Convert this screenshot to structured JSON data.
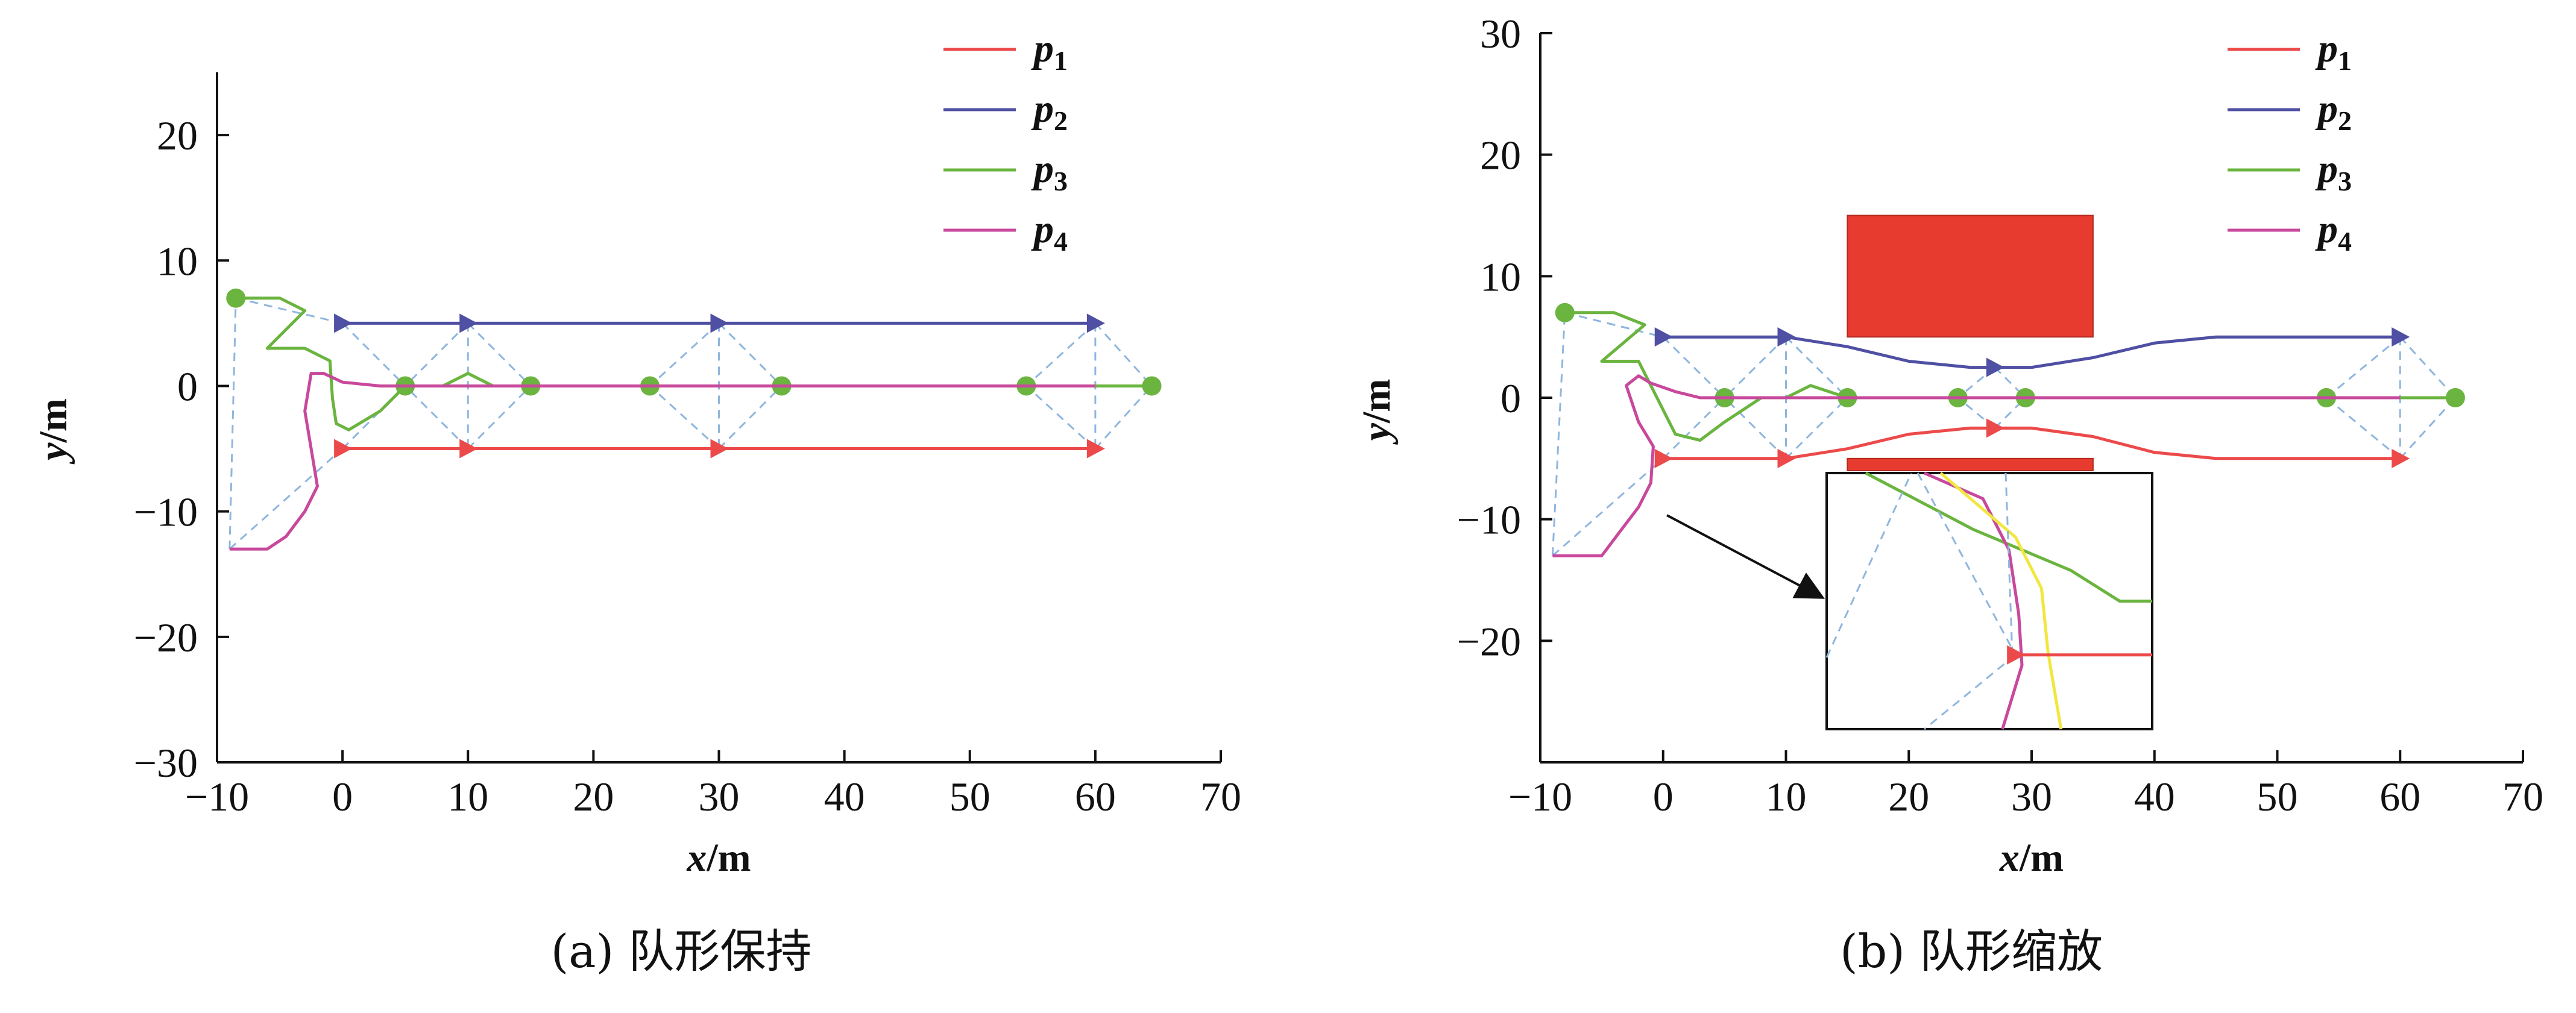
{
  "chart_data": [
    {
      "id": "a",
      "type": "line",
      "caption": "(a) 队形保持",
      "xlabel_var": "x",
      "xlabel_unit": "/m",
      "ylabel_var": "y",
      "ylabel_unit": "/m",
      "xlim": [
        -10,
        70
      ],
      "ylim": [
        -30,
        25
      ],
      "xticks": [
        -10,
        0,
        10,
        20,
        30,
        40,
        50,
        60,
        70
      ],
      "yticks": [
        -30,
        -20,
        -10,
        0,
        10,
        20
      ],
      "legend_position": "top-right",
      "series": [
        {
          "name": "p",
          "sub": "1",
          "color": "#ec4a4a",
          "x": [
            0,
            10,
            20,
            30,
            40,
            50,
            60
          ],
          "y": [
            -5,
            -5,
            -5,
            -5,
            -5,
            -5,
            -5
          ],
          "markers": [
            [
              0,
              -5
            ],
            [
              10,
              -5
            ],
            [
              30,
              -5
            ],
            [
              60,
              -5
            ]
          ]
        },
        {
          "name": "p",
          "sub": "2",
          "color": "#4f4fa3",
          "x": [
            0,
            10,
            20,
            30,
            40,
            50,
            60
          ],
          "y": [
            5,
            5,
            5,
            5,
            5,
            5,
            5
          ],
          "markers": [
            [
              0,
              5
            ],
            [
              10,
              5
            ],
            [
              30,
              5
            ],
            [
              60,
              5
            ]
          ]
        },
        {
          "name": "p",
          "sub": "3",
          "color": "#6ab43f",
          "x": [
            -8.5,
            -5,
            -3,
            -6,
            -3,
            -1,
            -0.8,
            -0.5,
            0.5,
            3,
            5,
            8,
            10,
            12,
            15,
            20,
            25,
            30,
            35,
            40,
            45,
            50,
            55,
            60,
            65
          ],
          "y": [
            7,
            7,
            6,
            3,
            3,
            2,
            -1,
            -3,
            -3.5,
            -2,
            0,
            0,
            1,
            0,
            0,
            0,
            0,
            0,
            0,
            0,
            0,
            0,
            0,
            0,
            0
          ],
          "markers": [
            [
              -8.5,
              7
            ],
            [
              5,
              0
            ],
            [
              15,
              0
            ],
            [
              24.5,
              0
            ],
            [
              35,
              0
            ],
            [
              54.5,
              0
            ],
            [
              64.5,
              0
            ]
          ]
        },
        {
          "name": "p",
          "sub": "4",
          "color": "#c8489c",
          "x": [
            -9,
            -6,
            -4.5,
            -3,
            -2,
            -2.5,
            -3,
            -2.5,
            -1.5,
            0,
            3,
            6,
            10,
            15,
            20,
            30,
            40,
            50,
            60
          ],
          "y": [
            -13,
            -13,
            -12,
            -10,
            -8,
            -5,
            -2,
            1,
            1,
            0.3,
            0,
            0,
            0,
            0,
            0,
            0,
            0,
            0,
            0
          ],
          "markers": []
        }
      ],
      "formation_links": [
        [
          [
            -9,
            -13
          ],
          [
            0,
            -5
          ]
        ],
        [
          [
            -9,
            -13
          ],
          [
            -8.5,
            7
          ]
        ],
        [
          [
            -8.5,
            7
          ],
          [
            0,
            5
          ]
        ],
        [
          [
            0,
            5
          ],
          [
            5,
            0
          ]
        ],
        [
          [
            0,
            -5
          ],
          [
            5,
            0
          ]
        ],
        [
          [
            10,
            5
          ],
          [
            5,
            0
          ]
        ],
        [
          [
            10,
            -5
          ],
          [
            5,
            0
          ]
        ],
        [
          [
            10,
            5
          ],
          [
            15,
            0
          ]
        ],
        [
          [
            10,
            -5
          ],
          [
            15,
            0
          ]
        ],
        [
          [
            10,
            5
          ],
          [
            10,
            -5
          ]
        ],
        [
          [
            30,
            5
          ],
          [
            24.5,
            0
          ]
        ],
        [
          [
            30,
            -5
          ],
          [
            24.5,
            0
          ]
        ],
        [
          [
            30,
            5
          ],
          [
            35,
            0
          ]
        ],
        [
          [
            30,
            -5
          ],
          [
            35,
            0
          ]
        ],
        [
          [
            30,
            5
          ],
          [
            30,
            -5
          ]
        ],
        [
          [
            60,
            5
          ],
          [
            54.5,
            0
          ]
        ],
        [
          [
            60,
            -5
          ],
          [
            54.5,
            0
          ]
        ],
        [
          [
            60,
            5
          ],
          [
            64.5,
            0
          ]
        ],
        [
          [
            60,
            -5
          ],
          [
            64.5,
            0
          ]
        ],
        [
          [
            60,
            5
          ],
          [
            60,
            -5
          ]
        ]
      ]
    },
    {
      "id": "b",
      "type": "line",
      "caption": "(b) 队形缩放",
      "xlabel_var": "x",
      "xlabel_unit": "/m",
      "ylabel_var": "y",
      "ylabel_unit": "/m",
      "xlim": [
        -10,
        70
      ],
      "ylim": [
        -30,
        30
      ],
      "xticks": [
        -10,
        0,
        10,
        20,
        30,
        40,
        50,
        60,
        70
      ],
      "yticks": [
        -20,
        -10,
        0,
        10,
        20,
        30
      ],
      "legend_position": "top-right",
      "obstacles": [
        {
          "x": [
            15,
            35
          ],
          "y": [
            5,
            15
          ],
          "color": "#e63b2e"
        },
        {
          "x": [
            15,
            35
          ],
          "y": [
            -6,
            -5
          ],
          "color": "#e63b2e"
        }
      ],
      "series": [
        {
          "name": "p",
          "sub": "1",
          "color": "#ec4a4a",
          "x": [
            0,
            10,
            15,
            20,
            25,
            30,
            35,
            40,
            45,
            50,
            55,
            60
          ],
          "y": [
            -5,
            -5,
            -4.2,
            -3,
            -2.5,
            -2.5,
            -3.2,
            -4.5,
            -5,
            -5,
            -5,
            -5
          ],
          "markers": [
            [
              0,
              -5
            ],
            [
              10,
              -5
            ],
            [
              27,
              -2.5
            ],
            [
              60,
              -5
            ]
          ]
        },
        {
          "name": "p",
          "sub": "2",
          "color": "#4f4fa3",
          "x": [
            0,
            10,
            15,
            20,
            25,
            30,
            35,
            40,
            45,
            50,
            55,
            60
          ],
          "y": [
            5,
            5,
            4.2,
            3,
            2.5,
            2.5,
            3.3,
            4.5,
            5,
            5,
            5,
            5
          ],
          "markers": [
            [
              0,
              5
            ],
            [
              10,
              5
            ],
            [
              27,
              2.5
            ],
            [
              60,
              5
            ]
          ]
        },
        {
          "name": "p",
          "sub": "3",
          "color": "#6ab43f",
          "x": [
            -8,
            -4,
            -1.5,
            -5,
            -2,
            -1,
            1,
            3,
            5,
            8,
            10,
            12,
            15,
            20,
            25,
            30,
            35,
            40,
            45,
            50,
            55,
            60,
            65
          ],
          "y": [
            7,
            7,
            6,
            3,
            3,
            1,
            -3,
            -3.5,
            -2,
            0,
            0,
            1,
            0,
            0,
            0,
            0,
            0,
            0,
            0,
            0,
            0,
            0,
            0
          ],
          "markers": [
            [
              -8,
              7
            ],
            [
              5,
              0
            ],
            [
              15,
              0
            ],
            [
              24,
              0
            ],
            [
              29.5,
              0
            ],
            [
              54,
              0
            ],
            [
              64.5,
              0
            ]
          ]
        },
        {
          "name": "p",
          "sub": "4",
          "color": "#c8489c",
          "x": [
            -9,
            -5,
            -3.5,
            -2,
            -1,
            -0.8,
            -2,
            -3,
            -2,
            -1,
            1,
            3,
            5,
            8,
            10,
            15,
            20,
            25,
            30,
            40,
            50,
            60
          ],
          "y": [
            -13,
            -13,
            -11,
            -9,
            -7,
            -4,
            -2,
            1,
            1.8,
            1.2,
            0.5,
            0,
            0,
            0,
            0,
            0,
            0,
            0,
            0,
            0,
            0,
            0
          ],
          "markers": []
        }
      ],
      "formation_links": [
        [
          [
            -9,
            -13
          ],
          [
            0,
            -5
          ]
        ],
        [
          [
            -9,
            -13
          ],
          [
            -8,
            7
          ]
        ],
        [
          [
            -8,
            7
          ],
          [
            0,
            5
          ]
        ],
        [
          [
            0,
            5
          ],
          [
            5,
            0
          ]
        ],
        [
          [
            0,
            -5
          ],
          [
            5,
            0
          ]
        ],
        [
          [
            10,
            5
          ],
          [
            5,
            0
          ]
        ],
        [
          [
            10,
            -5
          ],
          [
            5,
            0
          ]
        ],
        [
          [
            10,
            5
          ],
          [
            15,
            0
          ]
        ],
        [
          [
            10,
            -5
          ],
          [
            15,
            0
          ]
        ],
        [
          [
            10,
            5
          ],
          [
            10,
            -5
          ]
        ],
        [
          [
            27,
            2.5
          ],
          [
            24,
            0
          ]
        ],
        [
          [
            27,
            -2.5
          ],
          [
            24,
            0
          ]
        ],
        [
          [
            27,
            2.5
          ],
          [
            29.5,
            0
          ]
        ],
        [
          [
            27,
            -2.5
          ],
          [
            29.5,
            0
          ]
        ],
        [
          [
            60,
            5
          ],
          [
            54,
            0
          ]
        ],
        [
          [
            60,
            -5
          ],
          [
            54,
            0
          ]
        ],
        [
          [
            60,
            5
          ],
          [
            64.5,
            0
          ]
        ],
        [
          [
            60,
            -5
          ],
          [
            64.5,
            0
          ]
        ],
        [
          [
            60,
            5
          ],
          [
            60,
            -5
          ]
        ]
      ],
      "inset": {
        "description_free": true,
        "lines": [
          {
            "color": "#6ab43f",
            "pts": [
              [
                0.12,
                0.0
              ],
              [
                0.45,
                0.22
              ],
              [
                0.75,
                0.38
              ],
              [
                0.9,
                0.5
              ],
              [
                1.0,
                0.5
              ]
            ]
          },
          {
            "color": "#c8489c",
            "pts": [
              [
                0.3,
                0.0
              ],
              [
                0.48,
                0.1
              ],
              [
                0.56,
                0.3
              ],
              [
                0.59,
                0.55
              ],
              [
                0.6,
                0.75
              ],
              [
                0.54,
                1.0
              ]
            ]
          },
          {
            "color": "#f2e640",
            "pts": [
              [
                0.35,
                0.0
              ],
              [
                0.58,
                0.25
              ],
              [
                0.66,
                0.45
              ],
              [
                0.68,
                0.7
              ],
              [
                0.72,
                1.0
              ]
            ]
          },
          {
            "color": "#ec4a4a",
            "pts": [
              [
                0.58,
                0.71
              ],
              [
                1.0,
                0.71
              ]
            ]
          },
          {
            "color": "#8fb6dd",
            "dashed": true,
            "pts": [
              [
                0.0,
                0.72
              ],
              [
                0.26,
                0.0
              ]
            ]
          },
          {
            "color": "#8fb6dd",
            "dashed": true,
            "pts": [
              [
                0.28,
                0.0
              ],
              [
                0.58,
                0.71
              ]
            ]
          },
          {
            "color": "#8fb6dd",
            "dashed": true,
            "pts": [
              [
                0.58,
                0.71
              ],
              [
                0.3,
                1.0
              ]
            ]
          },
          {
            "color": "#8fb6dd",
            "dashed": true,
            "pts": [
              [
                0.55,
                0.0
              ],
              [
                0.57,
                0.7
              ]
            ]
          }
        ],
        "marker": [
          0.58,
          0.71
        ]
      }
    }
  ]
}
